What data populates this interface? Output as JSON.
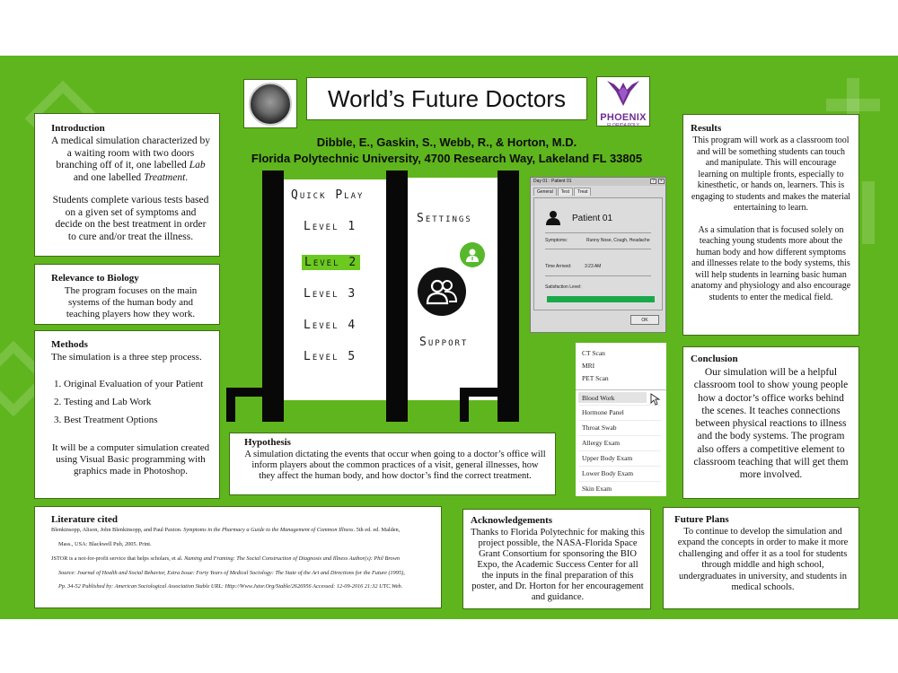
{
  "title": "World’s Future Doctors",
  "authors": "Dibble, E., Gaskin, S., Webb, R., & Horton, M.D.",
  "affiliation": "Florida Polytechnic University, 4700 Research Way, Lakeland FL 33805",
  "logos": {
    "left_seal": "NASA Florida Space Grant Consortium",
    "right": {
      "word": "PHOENIX",
      "sub": "FLORIDA POLY"
    }
  },
  "colors": {
    "background": "#5fb51d",
    "accent_green": "#6bc91f",
    "text": "#111111"
  },
  "introduction": {
    "heading": "Introduction",
    "p1_a": "A medical simulation characterized by a waiting room with two doors branching off of it, one labelled ",
    "p1_lab": "Lab",
    "p1_b": " and one labelled ",
    "p1_treatment": "Treatment",
    "p1_end": ".",
    "p2": "Students complete various tests based on a given set of symptoms and decide on the best treatment in order to cure and/or treat the illness."
  },
  "relevance": {
    "heading": "Relevance to Biology",
    "text": "The program focuses on the main systems of the human body and teaching players how they work."
  },
  "methods": {
    "heading": "Methods",
    "intro": "The simulation is a three step process.",
    "steps": [
      "Original Evaluation of your Patient",
      "Testing and Lab Work",
      "Best Treatment Options"
    ],
    "closing": "It will be a computer simulation created using Visual Basic programming with graphics made in Photoshop."
  },
  "game_menu": {
    "quick_play": "Quick Play",
    "levels": [
      "Level 1",
      "Level 2",
      "Level 3",
      "Level 4",
      "Level 5"
    ],
    "active_level": 2,
    "settings": "Settings",
    "support": "Support"
  },
  "dialog": {
    "title": "Day 01 : Patient 01",
    "tabs": [
      "General",
      "Test",
      "Treat"
    ],
    "patient": "Patient 01",
    "symptoms_label": "Symptoms:",
    "symptoms_value": "Runny Nose, Cough, Headache",
    "time_label": "Time Arrived:",
    "time_value": "3:23 AM",
    "satisfaction_label": "Satisfaction Level:",
    "satisfaction_level": 1.0,
    "ok": "OK"
  },
  "test_list": {
    "scans": [
      "CT Scan",
      "MRI",
      "PET Scan"
    ],
    "labs": [
      "Blood Work",
      "Hormone Panel",
      "Throat Swab",
      "Allergy Exam",
      "Upper Body Exam",
      "Lower Body Exam",
      "Skin Exam"
    ],
    "selected": "Blood Work"
  },
  "hypothesis": {
    "heading": "Hypothesis",
    "text": "A simulation dictating the events that occur when going to a doctor’s office will inform players about the common practices of a visit, general illnesses, how they affect the human body, and how doctor’s find the correct treatment."
  },
  "results": {
    "heading": "Results",
    "p1": "This program will work as a classroom tool and will be something students can touch and manipulate. This will encourage learning on multiple fronts, especially to kinesthetic, or hands on, learners. This is engaging to students and makes the material entertaining to learn.",
    "p2": "As a simulation that is focused solely on teaching young students more about the human body and how different symptoms and illnesses relate to the body systems, this will help students in learning basic human anatomy and physiology and also encourage students to enter the medical field."
  },
  "conclusion": {
    "heading": "Conclusion",
    "text": "Our simulation will be a helpful classroom tool to show young people how a doctor’s office works behind the scenes. It teaches connections between physical reactions to illness and the body systems. The program also offers a competitive element to classroom teaching that will get them more involved."
  },
  "literature": {
    "heading": "Literature cited",
    "ref1_a": "Blenkinsopp, Alison, John Blenkinsopp, and Paul Paxton. ",
    "ref1_title": "Symptoms in the Pharmacy a Guide to the Management of Common Illness",
    "ref1_b": ". 5th ed. ed. Malden,",
    "ref1_c": "Mass., USA: Blackwell Pub, 2005. Print.",
    "ref2_a": "JSTOR is a not-for-profit service that helps scholars, et al. ",
    "ref2_title": "Naming and Framing: The Social Construction of Diagnosis and Illness Author(s): Phil Brown",
    "ref2_b": "Source: Journal of Health and Social Behavior, Extra Issue: Forty Years of Medical Sociology: The State of the Art and Directions for the Future (1995),",
    "ref2_c": "Pp. 34-52 Published by: American Sociological Association Stable URL: Http://Www.Jstor.Org/Stable/2626956 Accessed: 12-09-2016 21:32 UTC.Web."
  },
  "acknowledgements": {
    "heading": "Acknowledgements",
    "text": "Thanks to Florida Polytechnic for making this project possible, the NASA-Florida Space Grant Consortium for sponsoring the BIO Expo, the Academic Success Center for all the inputs in the final preparation of this poster, and Dr. Horton for her encouragement and guidance."
  },
  "future_plans": {
    "heading": "Future Plans",
    "text": "To continue to develop the simulation and expand the concepts in order to make it more challenging and offer it as a tool for students through middle and high school, undergraduates in university, and students in medical schools."
  }
}
